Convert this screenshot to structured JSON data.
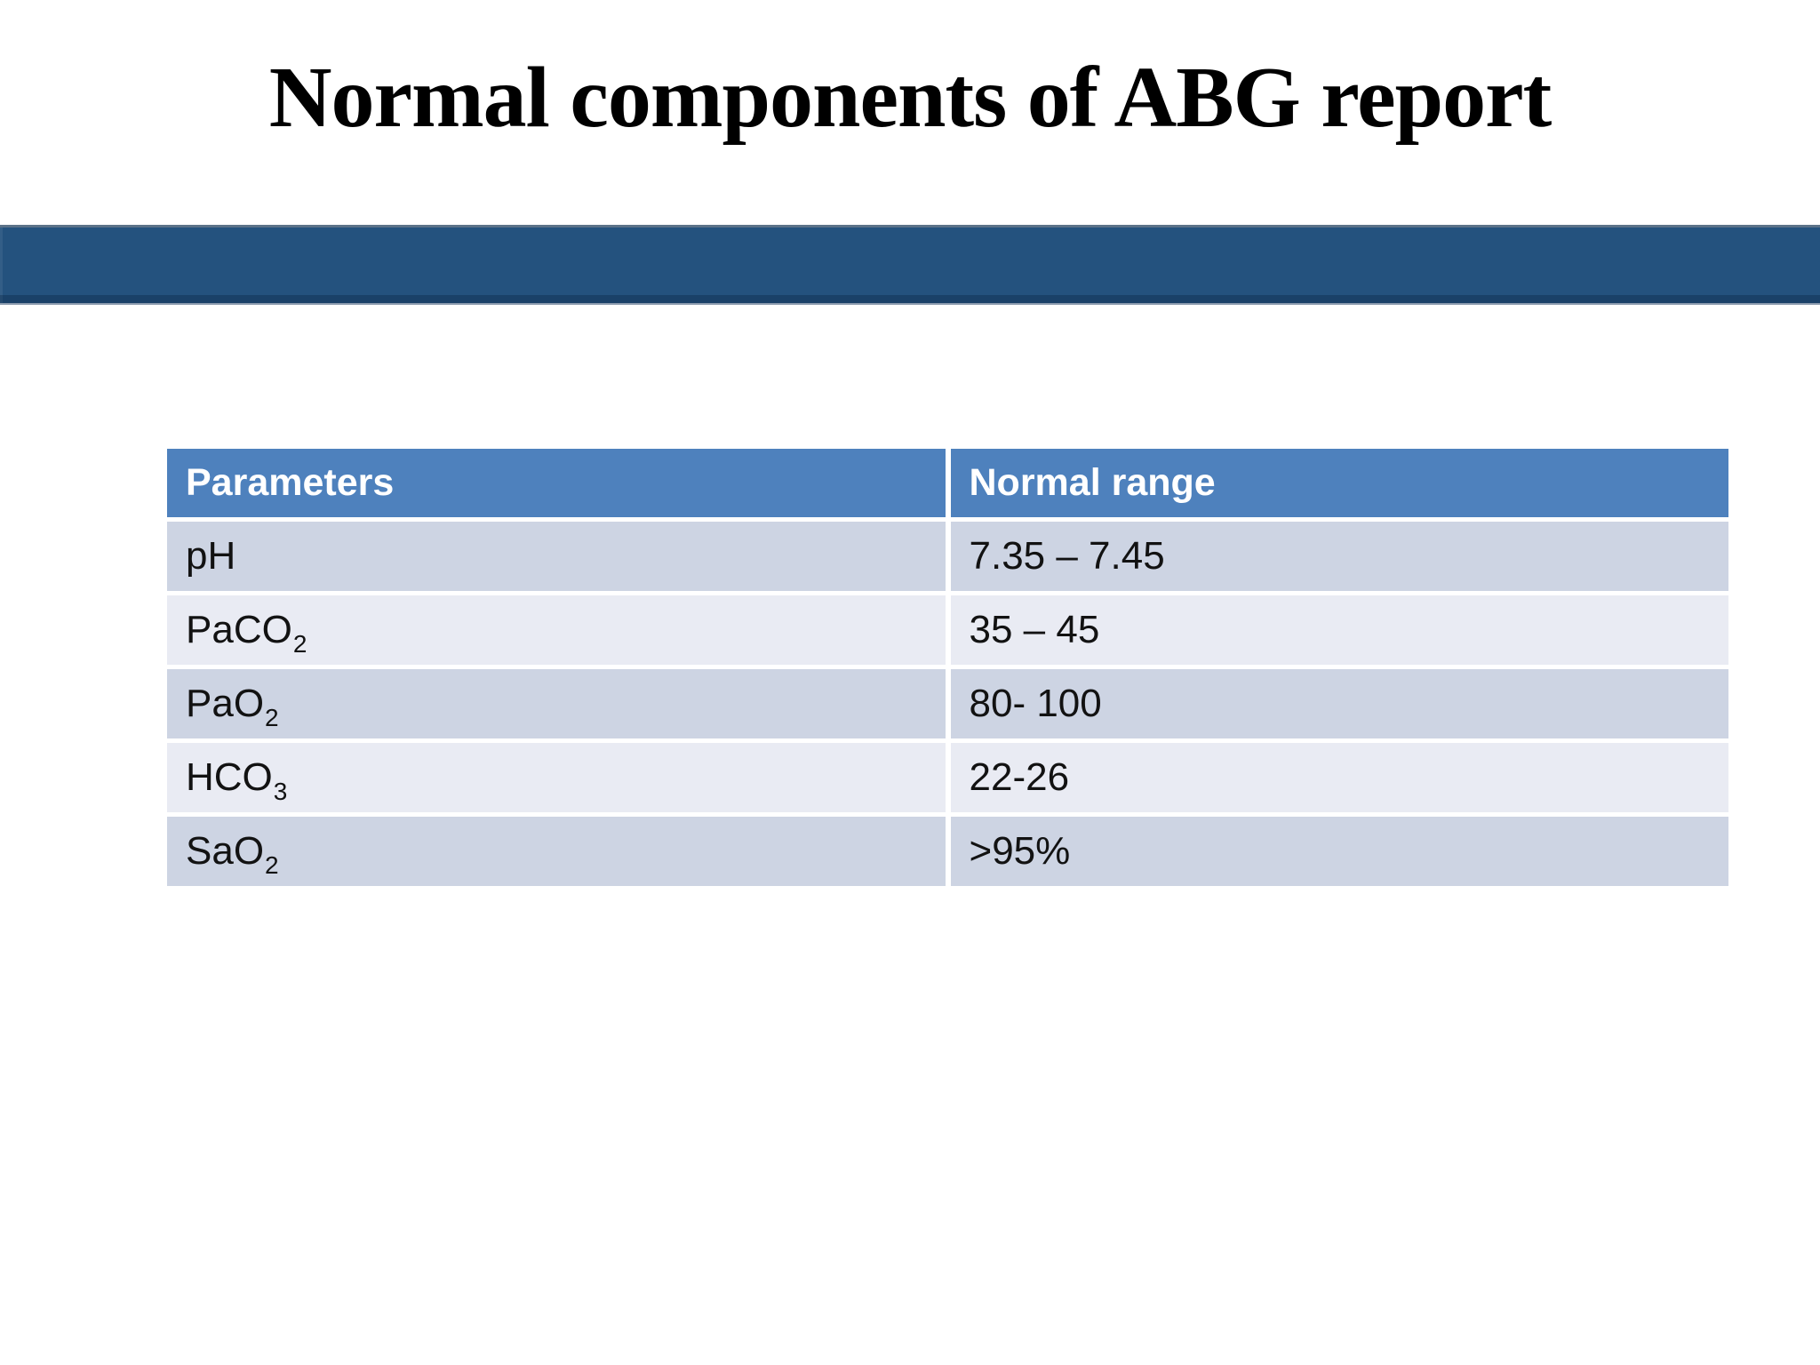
{
  "title": "Normal components of ABG report",
  "table": {
    "headers": [
      "Parameters",
      "Normal range"
    ],
    "rows": [
      {
        "param": "pH",
        "sub": "",
        "range": "7.35 – 7.45"
      },
      {
        "param": "PaCO",
        "sub": "2",
        "range": "35 – 45"
      },
      {
        "param": "PaO",
        "sub": "2",
        "range": "80- 100"
      },
      {
        "param": "HCO",
        "sub": "3",
        "range": "22-26"
      },
      {
        "param": "SaO",
        "sub": "2",
        "range": ">95%"
      }
    ]
  },
  "colors": {
    "title_text": "#000000",
    "banner_bg": "#24527e",
    "header_bg": "#4e81bd",
    "header_text": "#ffffff",
    "row_dark": "#cdd4e3",
    "row_light": "#e9ebf3",
    "body_text": "#121212"
  }
}
